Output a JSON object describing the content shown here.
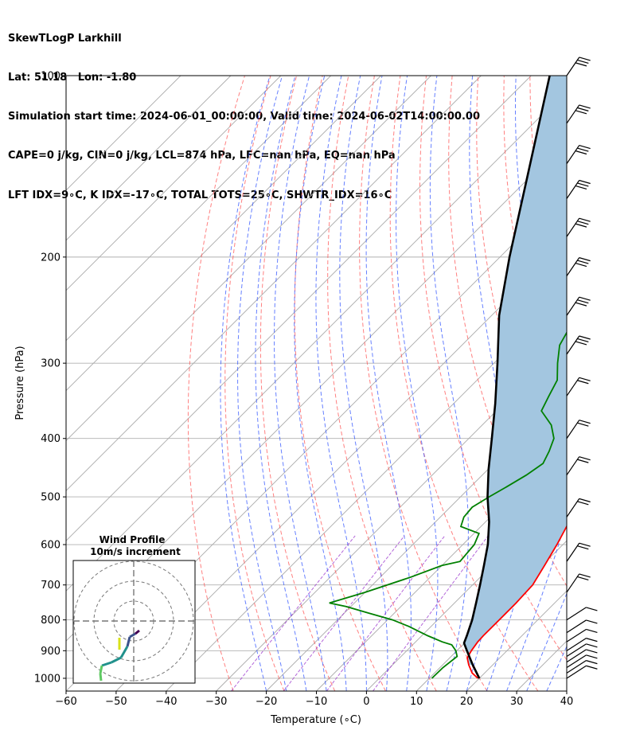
{
  "header": {
    "line1": "SkewTLogP Larkhill",
    "line2": "Lat: 51.18   Lon: -1.80",
    "line3": "Simulation start time: 2024-06-01_00:00:00, Valid time: 2024-06-02T14:00:00.00",
    "line4": "CAPE=0 j/kg, CIN=0 j/kg, LCL=874 hPa, LFC=nan hPa, EQ=nan hPa",
    "line5": "LFT IDX=9∘C, K IDX=-17∘C, TOTAL TOTS=25∘C, SHWTR_IDX=16∘C"
  },
  "chart_data": {
    "type": "line",
    "subtype": "skew-T log-P diagram",
    "xlabel": "Temperature (∘C)",
    "ylabel": "Pressure (hPa)",
    "xlim": [
      -60,
      40
    ],
    "ylim": [
      1050,
      100
    ],
    "y_scale": "log",
    "grid": true,
    "x_ticks": [
      -60,
      -50,
      -40,
      -30,
      -20,
      -10,
      0,
      10,
      20,
      30,
      40
    ],
    "x_tick_labels": [
      "−60",
      "−50",
      "−40",
      "−30",
      "−20",
      "−10",
      "0",
      "10",
      "20",
      "30",
      "40"
    ],
    "y_ticks": [
      100,
      200,
      300,
      400,
      500,
      600,
      700,
      800,
      900,
      1000
    ],
    "y_tick_labels": [
      "100",
      "200",
      "300",
      "400",
      "500",
      "600",
      "700",
      "800",
      "900",
      "1000"
    ],
    "colors": {
      "temperature": "#ff0000",
      "dewpoint": "#008000",
      "parcel": "#000000",
      "shade": "#a3c6e0",
      "dry_adiabat": "#ff5555",
      "moist_adiabat": "#3355ff",
      "mixing_ratio": "#9933cc",
      "isotherm": "#aaaaaa"
    },
    "series": [
      {
        "role": "temperature",
        "points": [
          [
            1000,
            19.7
          ],
          [
            980,
            17.5
          ],
          [
            950,
            15.2
          ],
          [
            925,
            13.5
          ],
          [
            900,
            12.9
          ],
          [
            870,
            12.4
          ],
          [
            850,
            12.3
          ],
          [
            800,
            12.3
          ],
          [
            750,
            12.3
          ],
          [
            700,
            12.0
          ],
          [
            650,
            10.5
          ],
          [
            600,
            8.8
          ],
          [
            550,
            6.7
          ],
          [
            500,
            3.4
          ],
          [
            450,
            -1.2
          ],
          [
            400,
            -5.2
          ],
          [
            350,
            -10.6
          ],
          [
            320,
            -14.2
          ],
          [
            300,
            -16.8
          ],
          [
            280,
            -18.6
          ],
          [
            250,
            -21.5
          ],
          [
            230,
            -24.2
          ],
          [
            215,
            -26.5
          ],
          [
            205,
            -26.8
          ],
          [
            198,
            -26.6
          ],
          [
            185,
            -26.3
          ],
          [
            175,
            -26.8
          ],
          [
            165,
            -27.3
          ],
          [
            155,
            -28.8
          ],
          [
            145,
            -30.0
          ],
          [
            135,
            -32.1
          ],
          [
            125,
            -33.3
          ],
          [
            118,
            -34.4
          ],
          [
            112,
            -35.1
          ],
          [
            100,
            -36.6
          ]
        ]
      },
      {
        "role": "dewpoint",
        "points": [
          [
            1000,
            10.5
          ],
          [
            960,
            10.6
          ],
          [
            920,
            11.2
          ],
          [
            900,
            9.8
          ],
          [
            880,
            7.8
          ],
          [
            870,
            5.3
          ],
          [
            850,
            1.2
          ],
          [
            820,
            -4.5
          ],
          [
            800,
            -9.0
          ],
          [
            780,
            -15.0
          ],
          [
            760,
            -21.0
          ],
          [
            750,
            -25.0
          ],
          [
            720,
            -20.0
          ],
          [
            680,
            -14.0
          ],
          [
            650,
            -10.0
          ],
          [
            640,
            -7.2
          ],
          [
            600,
            -7.7
          ],
          [
            575,
            -9.0
          ],
          [
            560,
            -14.0
          ],
          [
            540,
            -15.3
          ],
          [
            520,
            -15.6
          ],
          [
            500,
            -14.3
          ],
          [
            480,
            -12.7
          ],
          [
            460,
            -11.2
          ],
          [
            440,
            -10.2
          ],
          [
            420,
            -11.4
          ],
          [
            400,
            -13.0
          ],
          [
            380,
            -16.2
          ],
          [
            360,
            -21.0
          ],
          [
            340,
            -22.5
          ],
          [
            320,
            -24.0
          ],
          [
            300,
            -27.3
          ],
          [
            280,
            -30.5
          ],
          [
            255,
            -32.6
          ],
          [
            240,
            -34.6
          ],
          [
            225,
            -37.6
          ],
          [
            215,
            -39.6
          ],
          [
            205,
            -40.6
          ],
          [
            195,
            -41.8
          ],
          [
            185,
            -43.5
          ],
          [
            175,
            -46.2
          ],
          [
            165,
            -49.0
          ],
          [
            155,
            -50.2
          ],
          [
            145,
            -50.0
          ],
          [
            135,
            -50.3
          ],
          [
            125,
            -50.9
          ],
          [
            115,
            -51.7
          ],
          [
            100,
            -53.7
          ]
        ]
      },
      {
        "role": "parcel",
        "points": [
          [
            1000,
            20.0
          ],
          [
            950,
            16.0
          ],
          [
            900,
            12.0
          ],
          [
            874,
            9.9
          ],
          [
            850,
            9.0
          ],
          [
            800,
            6.9
          ],
          [
            750,
            4.3
          ],
          [
            700,
            1.5
          ],
          [
            650,
            -1.6
          ],
          [
            600,
            -5.0
          ],
          [
            550,
            -9.3
          ],
          [
            500,
            -14.6
          ],
          [
            450,
            -19.9
          ],
          [
            400,
            -25.4
          ],
          [
            350,
            -31.7
          ],
          [
            300,
            -39.3
          ],
          [
            250,
            -48.5
          ],
          [
            200,
            -58.1
          ],
          [
            150,
            -69.8
          ],
          [
            100,
            -86.3
          ]
        ]
      }
    ],
    "wind_barbs_note": "wind barbs along right edge",
    "hodograph": {
      "title": "Wind Profile",
      "subtitle": "10m/s increment",
      "rings_ms": [
        10,
        20,
        30
      ]
    }
  }
}
